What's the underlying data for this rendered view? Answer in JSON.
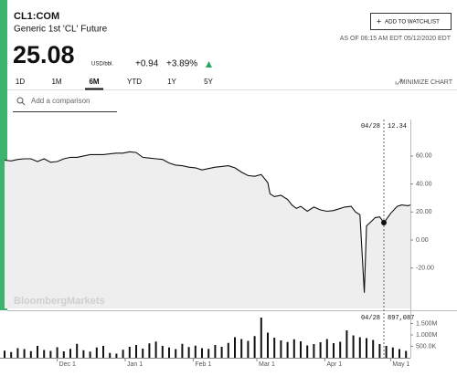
{
  "header": {
    "symbol": "CL1:COM",
    "name": "Generic 1st 'CL' Future",
    "price": "25.08",
    "unit": "USD/bbl.",
    "change": "+0.94",
    "change_pct": "+3.89%",
    "button": "ADD TO WATCHLIST",
    "as_of": "AS OF 06:15 AM EDT 05/12/2020 EDT"
  },
  "tabs": [
    "1D",
    "1M",
    "6M",
    "YTD",
    "1Y",
    "5Y"
  ],
  "active_tab": 2,
  "minimize": "MINIMIZE CHART",
  "search_placeholder": "Add a comparison",
  "watermark": "BloombergMarkets",
  "hover": {
    "date": "04/28",
    "price": "12.34",
    "volume": "897,087"
  },
  "chart_data": [
    {
      "type": "line",
      "x": [
        0,
        3,
        6,
        9,
        12,
        15,
        18,
        21,
        24,
        27,
        30,
        33,
        36,
        39,
        42,
        45,
        48,
        51,
        54,
        57,
        60,
        63,
        66,
        69,
        72,
        75,
        78,
        81,
        84,
        87,
        90,
        93,
        96,
        99,
        102,
        105,
        108,
        111,
        114,
        117,
        120,
        121,
        123,
        126,
        129,
        131,
        133,
        135,
        138,
        141,
        144,
        147,
        150,
        152,
        155,
        158,
        160,
        162,
        164,
        165,
        167,
        169,
        171,
        173,
        176,
        179,
        181,
        184,
        185
      ],
      "series": [
        {
          "color": "#111111",
          "values": [
            57,
            56.5,
            57.5,
            58,
            58,
            56,
            58,
            55.5,
            56,
            58,
            59,
            59,
            60,
            61,
            61,
            61,
            61.5,
            62,
            62,
            63,
            62.5,
            59,
            58.5,
            58,
            57.5,
            55,
            53.5,
            53,
            52,
            51.5,
            50,
            51,
            52,
            52.5,
            53,
            51.5,
            48.5,
            46,
            45.5,
            46.8,
            41,
            33,
            31,
            32,
            29,
            25,
            22.5,
            24,
            20.5,
            23.5,
            21.5,
            20.5,
            21,
            22,
            23.5,
            24,
            20,
            18,
            -37.6,
            10,
            13,
            16,
            16.5,
            12.34,
            19,
            24,
            25,
            24.5,
            25.08
          ]
        }
      ],
      "xlim": [
        0,
        185
      ],
      "ylim": [
        -48.9,
        83.4
      ],
      "yticks": [
        {
          "value": 60,
          "label": "60.00"
        },
        {
          "value": 40,
          "label": "40.00"
        },
        {
          "value": 20,
          "label": "20.00"
        },
        {
          "value": 0,
          "label": "0.00"
        },
        {
          "value": -20,
          "label": "-20.00"
        }
      ]
    },
    {
      "type": "bar",
      "x": [
        0,
        3,
        6,
        9,
        12,
        15,
        18,
        21,
        24,
        27,
        30,
        33,
        36,
        39,
        42,
        45,
        48,
        51,
        54,
        57,
        60,
        63,
        66,
        69,
        72,
        75,
        78,
        81,
        84,
        87,
        90,
        93,
        96,
        99,
        102,
        105,
        108,
        111,
        114,
        117,
        120,
        123,
        126,
        129,
        132,
        135,
        138,
        141,
        144,
        147,
        150,
        153,
        156,
        159,
        162,
        165,
        168,
        171,
        174,
        177,
        180,
        183
      ],
      "values": [
        310000,
        250000,
        420000,
        380000,
        290000,
        520000,
        340000,
        300000,
        460000,
        280000,
        390000,
        610000,
        330000,
        270000,
        450000,
        520000,
        210000,
        180000,
        350000,
        480000,
        560000,
        400000,
        630000,
        710000,
        520000,
        450000,
        380000,
        610000,
        470000,
        530000,
        420000,
        390000,
        560000,
        480000,
        650000,
        900000,
        820000,
        740000,
        950000,
        1760000,
        1100000,
        880000,
        760000,
        690000,
        810000,
        720000,
        540000,
        600000,
        680000,
        820000,
        640000,
        700000,
        1200000,
        980000,
        900000,
        860000,
        780000,
        600000,
        520000,
        450000,
        380000,
        300000
      ],
      "color": "#111111",
      "xlim": [
        0,
        185
      ],
      "ylim": [
        0,
        1960000
      ],
      "yticks": [
        {
          "value": 1500000,
          "label": "1.500M"
        },
        {
          "value": 1000000,
          "label": "1.000M"
        },
        {
          "value": 500000,
          "label": "500.0K"
        }
      ],
      "xticks": [
        {
          "value": 24,
          "label": "Dec 1"
        },
        {
          "value": 55,
          "label": "Jan 1"
        },
        {
          "value": 86,
          "label": "Feb 1"
        },
        {
          "value": 115,
          "label": "Mar 1"
        },
        {
          "value": 146,
          "label": "Apr 1"
        },
        {
          "value": 176,
          "label": "May 1"
        }
      ]
    }
  ]
}
